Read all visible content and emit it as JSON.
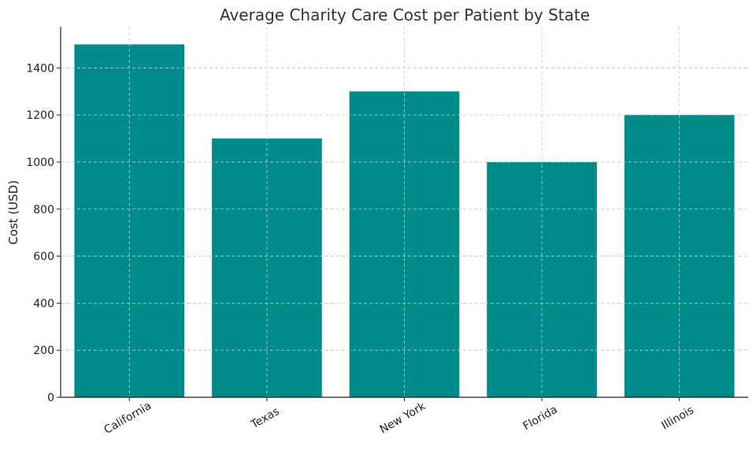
{
  "chart_data": {
    "type": "bar",
    "title": "Average Charity Care Cost per Patient by State",
    "xlabel": "",
    "ylabel": "Cost (USD)",
    "categories": [
      "California",
      "Texas",
      "New York",
      "Florida",
      "Illinois"
    ],
    "values": [
      1500,
      1100,
      1300,
      1000,
      1200
    ],
    "ylim": [
      0,
      1575
    ],
    "yticks": [
      0,
      200,
      400,
      600,
      800,
      1000,
      1200,
      1400
    ],
    "grid": true,
    "bar_color": "#008B8B",
    "xtick_rotation_deg": -30
  }
}
